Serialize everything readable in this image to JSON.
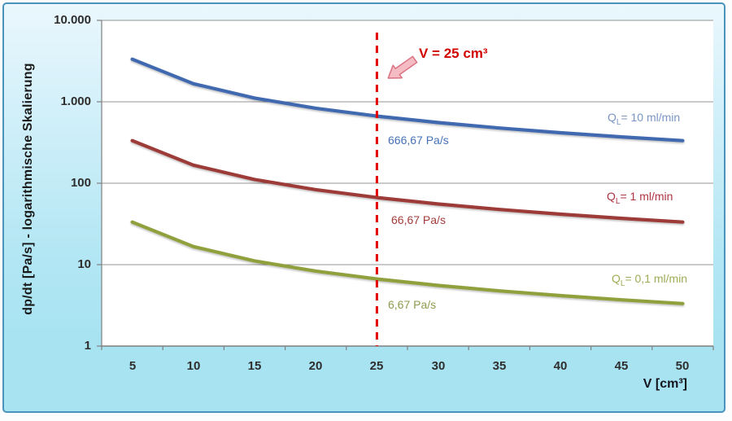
{
  "chart_data": {
    "type": "line",
    "x": [
      5,
      10,
      15,
      20,
      25,
      30,
      35,
      40,
      45,
      50
    ],
    "x_ticks": [
      "5",
      "10",
      "15",
      "20",
      "25",
      "30",
      "35",
      "40",
      "45",
      "50"
    ],
    "y_ticks": [
      "10.000",
      "1.000",
      "100",
      "10",
      "1"
    ],
    "y_scale": "log",
    "ylim": [
      1,
      10000
    ],
    "xlabel": "V [cm³]",
    "ylabel": "dp/dt [Pa/s] - logarithmische Skalierung",
    "grid": "horizontal",
    "legend_position": "labels-on-right",
    "series": [
      {
        "name": "QL= 10 ml/min",
        "label_q": "Q",
        "label_sub": "L",
        "label_rest": "= 10 ml/min",
        "label_color": "#7a95c4",
        "line_color": "#4169b0",
        "values": [
          3333.33,
          1666.67,
          1111.11,
          833.33,
          666.67,
          555.56,
          476.19,
          416.67,
          370.37,
          333.33
        ]
      },
      {
        "name": "QL= 1 ml/min",
        "label_q": "Q",
        "label_sub": "L",
        "label_rest": "= 1 ml/min",
        "label_color": "#ad3440",
        "line_color": "#9c3a38",
        "values": [
          333.33,
          166.67,
          111.11,
          83.33,
          66.67,
          55.56,
          47.62,
          41.67,
          37.04,
          33.33
        ]
      },
      {
        "name": "QL= 0,1 ml/min",
        "label_q": "Q",
        "label_sub": "L",
        "label_rest": "= 0,1 ml/min",
        "label_color": "#9fac55",
        "line_color": "#8fa03c",
        "values": [
          33.33,
          16.67,
          11.11,
          8.33,
          6.67,
          5.56,
          4.76,
          4.17,
          3.7,
          3.33
        ]
      }
    ],
    "value_labels": [
      {
        "text": "666,67 Pa/s",
        "color": "#4671b8",
        "at_x": 25
      },
      {
        "text": "66,67 Pa/s",
        "color": "#a33c3c",
        "at_x": 25
      },
      {
        "text": "6,67 Pa/s",
        "color": "#8e9b4d",
        "at_x": 25
      }
    ],
    "reference_line": {
      "x": 25,
      "label": "V = 25 cm³",
      "color": "#e40000",
      "style": "dashed"
    },
    "annotation_arrow": {
      "fill": "#f5bdc3",
      "stroke": "#db7283"
    }
  }
}
